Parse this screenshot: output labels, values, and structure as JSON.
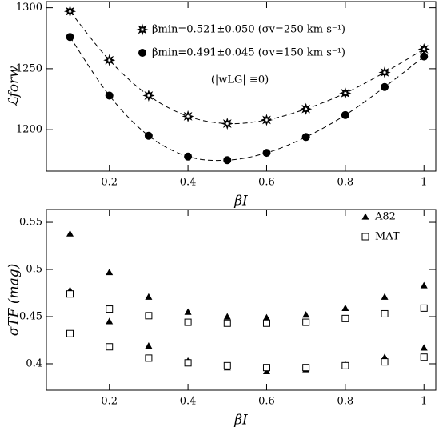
{
  "chart_data": [
    {
      "type": "line",
      "xlabel": "βI",
      "ylabel": "ℒforw",
      "annotation": "(|wLG| ≡0)",
      "x": [
        0.1,
        0.2,
        0.3,
        0.4,
        0.5,
        0.6,
        0.7,
        0.8,
        0.9,
        1.0
      ],
      "series": [
        {
          "name": "βmin=0.521±0.050  (σv=250 km s⁻¹)",
          "color": "#000000",
          "marker": "star",
          "line_style": "dashed",
          "values": [
            1297,
            1257,
            1228,
            1211,
            1205,
            1208,
            1217,
            1230,
            1247,
            1266
          ]
        },
        {
          "name": "βmin=0.491±0.045  (σv=150 km s⁻¹)",
          "color": "#000000",
          "marker": "circle",
          "line_style": "dashed",
          "values": [
            1276,
            1228,
            1195,
            1178,
            1175,
            1181,
            1194,
            1212,
            1235,
            1260
          ]
        }
      ],
      "xlim": [
        0.04,
        1.03
      ],
      "xticks": [
        0.2,
        0.4,
        0.6,
        0.8,
        1
      ],
      "ylim": [
        1166,
        1305
      ],
      "yticks": [
        1200,
        1250,
        1300
      ]
    },
    {
      "type": "scatter",
      "xlabel": "βI",
      "ylabel": "σTF (mag)",
      "series": [
        {
          "name": "A82",
          "color": "#000000",
          "marker": "triangle",
          "x": [
            0.1,
            0.1,
            0.2,
            0.2,
            0.3,
            0.3,
            0.4,
            0.4,
            0.5,
            0.5,
            0.6,
            0.6,
            0.7,
            0.7,
            0.8,
            0.8,
            0.9,
            0.9,
            1.0,
            1.0
          ],
          "values": [
            0.538,
            0.478,
            0.497,
            0.445,
            0.471,
            0.419,
            0.455,
            0.403,
            0.45,
            0.396,
            0.449,
            0.392,
            0.452,
            0.394,
            0.459,
            0.399,
            0.471,
            0.407,
            0.483,
            0.417
          ]
        },
        {
          "name": "MAT",
          "color": "#000000",
          "marker": "square",
          "x": [
            0.1,
            0.1,
            0.2,
            0.2,
            0.3,
            0.3,
            0.4,
            0.4,
            0.5,
            0.5,
            0.6,
            0.6,
            0.7,
            0.7,
            0.8,
            0.8,
            0.9,
            0.9,
            1.0,
            1.0
          ],
          "values": [
            0.474,
            0.432,
            0.458,
            0.418,
            0.451,
            0.406,
            0.444,
            0.401,
            0.443,
            0.398,
            0.443,
            0.396,
            0.444,
            0.396,
            0.448,
            0.398,
            0.453,
            0.402,
            0.459,
            0.407
          ]
        }
      ],
      "xlim": [
        0.04,
        1.03
      ],
      "xticks": [
        0.2,
        0.4,
        0.6,
        0.8,
        1
      ],
      "ylim": [
        0.372,
        0.5636
      ],
      "yticks": [
        0.4,
        0.45,
        0.5,
        0.55
      ]
    }
  ]
}
